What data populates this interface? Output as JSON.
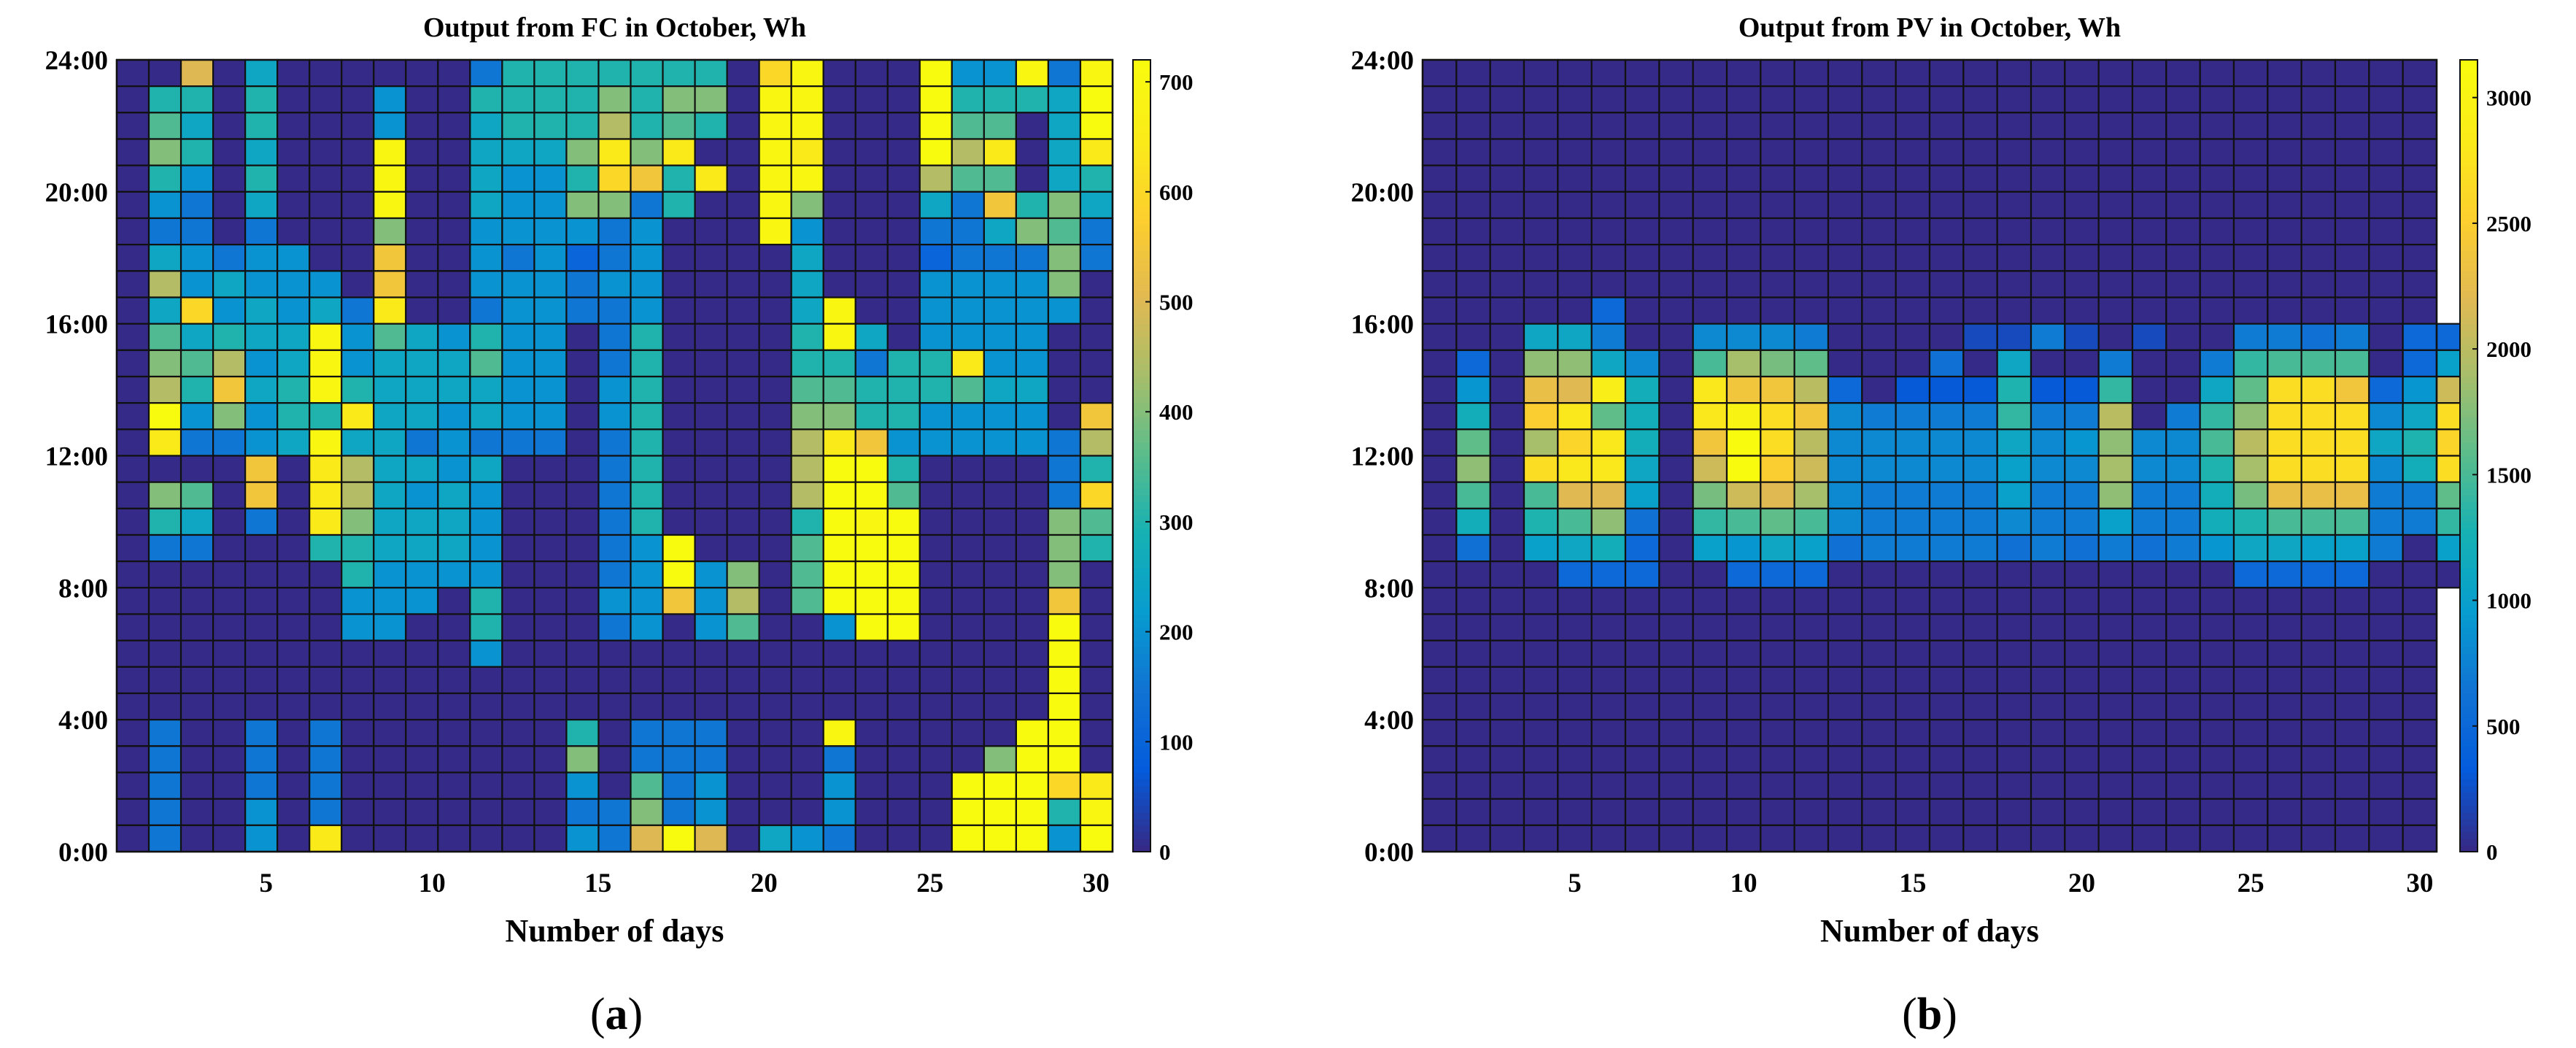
{
  "chart_data": [
    {
      "type": "heatmap",
      "title": "Output from FC in October, Wh",
      "xlabel": "Number of days",
      "ylabel": "",
      "caption": "(a)",
      "caption_letter": "a",
      "x_ticks": [
        "5",
        "10",
        "15",
        "20",
        "25",
        "30"
      ],
      "y_ticks": [
        "0:00",
        "4:00",
        "8:00",
        "12:00",
        "16:00",
        "20:00",
        "24:00"
      ],
      "x_range": [
        1,
        30
      ],
      "y_range": [
        0,
        24
      ],
      "colorbar_ticks": [
        "0",
        "100",
        "200",
        "300",
        "400",
        "500",
        "600",
        "700"
      ],
      "colorbar_range": [
        0,
        720
      ],
      "colormap": "parula",
      "grid": true,
      "rows_from_top": [
        "0 0 500 0 250 0 0 0 0 0 0 150 300 300 300 300 300 300 300 0 600 700 0 0 0 720 200 200 700 150 700",
        "0 300 300 0 300 0 0 0 200 0 0 300 300 300 300 400 300 400 400 0 700 700 0 0 0 720 300 300 300 250 720",
        "0 350 250 0 300 0 0 0 200 0 0 250 300 300 300 450 300 350 300 0 700 700 0 0 0 720 350 350 0 250 720",
        "0 400 300 0 250 0 0 0 700 0 0 250 250 250 400 650 400 650 0 0 700 650 0 0 0 720 450 650 0 250 650",
        "0 300 200 0 300 0 0 0 700 0 0 250 200 200 300 600 550 300 650 0 700 700 0 0 0 450 350 350 0 250 300",
        "0 200 150 0 250 0 0 0 700 0 0 250 200 200 400 400 150 300 0 0 700 400 0 0 0 250 150 550 300 400 250",
        "0 150 150 0 150 0 0 0 400 0 0 200 200 200 200 150 200 0 0 0 700 200 0 0 0 150 150 250 400 350 150",
        "0 250 200 150 200 200 0 0 550 0 0 200 150 200 100 150 200 0 0 0 0 250 0 0 0 100 150 150 150 400 150",
        "0 450 200 250 200 200 200 0 550 0 0 200 200 200 150 200 200 0 0 0 0 250 0 0 0 200 200 200 200 400 0",
        "0 250 600 200 250 200 250 150 650 0 0 150 200 200 150 150 200 0 0 0 0 250 700 0 0 200 200 200 200 200 0",
        "0 350 250 300 250 250 700 200 350 250 200 300 200 200 0 150 300 0 0 0 0 300 700 250 0 200 200 200 200 0 0",
        "0 400 350 450 200 250 700 200 250 250 250 350 200 200 0 150 300 0 0 0 0 300 300 150 300 300 650 200 200 0 0",
        "0 450 300 550 250 300 700 300 250 250 250 250 200 200 0 200 300 0 0 0 0 350 350 300 300 300 350 250 250 0 0",
        "0 720 200 400 200 300 300 650 250 250 200 250 200 200 0 200 300 0 0 0 0 400 400 300 300 200 200 200 200 0 550",
        "0 650 150 150 200 250 700 250 250 150 200 150 150 150 0 150 300 0 0 0 0 450 650 550 200 200 200 200 200 150 450",
        "0 0 0 0 550 0 650 450 250 250 200 250 0 0 0 150 300 0 0 0 0 450 720 720 300 0 0 0 0 150 300",
        "0 400 350 0 550 0 650 450 250 200 250 200 0 0 0 150 300 0 0 0 0 450 720 720 350 0 0 0 0 150 600",
        "0 300 250 0 150 0 650 400 250 250 250 200 0 0 0 150 300 0 0 0 0 300 720 700 720 0 0 0 0 400 350",
        "0 150 150 0 0 0 300 300 250 250 250 200 0 0 0 150 200 720 0 0 0 350 720 720 720 0 0 0 0 400 300",
        "0 0 0 0 0 0 0 300 200 200 200 200 0 0 0 150 200 720 200 400 0 350 720 720 720 0 0 0 0 400 0",
        "0 0 0 0 0 0 0 200 200 200 0 300 0 0 0 200 200 550 200 450 0 350 720 720 720 0 0 0 0 550 0",
        "0 0 0 0 0 0 0 200 200 0 0 300 0 0 0 150 200 0 200 350 0 0 200 720 720 0 0 0 0 720 0",
        "0 0 0 0 0 0 0 0 0 0 0 200 0 0 0 0 0 0 0 0 0 0 0 0 0 0 0 0 0 720 0",
        "0 0 0 0 0 0 0 0 0 0 0 0 0 0 0 0 0 0 0 0 0 0 0 0 0 0 0 0 0 720 0",
        "0 0 0 0 0 0 0 0 0 0 0 0 0 0 0 0 0 0 0 0 0 0 0 0 0 0 0 0 0 720 0",
        "0 150 0 0 150 0 150 0 0 0 0 0 0 0 300 0 150 150 150 0 0 0 700 0 0 0 0 0 720 720 0",
        "0 150 0 0 150 0 150 0 0 0 0 0 0 0 400 0 150 150 150 0 0 0 150 0 0 0 0 400 720 720 0",
        "0 150 0 0 150 0 150 0 0 0 0 0 0 0 200 0 350 150 200 0 0 0 200 0 0 0 720 720 720 600 650",
        "0 150 0 0 200 0 150 0 0 0 0 0 0 0 150 150 400 150 200 0 0 0 200 0 0 0 720 720 720 300 700",
        "0 150 0 0 200 0 650 0 0 0 0 0 0 0 200 150 500 720 500 0 250 200 150 0 0 0 720 720 720 200 720"
      ]
    },
    {
      "type": "heatmap",
      "title": "Output from PV in October, Wh",
      "xlabel": "Number of days",
      "ylabel": "",
      "caption": "(b)",
      "caption_letter": "b",
      "x_ticks": [
        "5",
        "10",
        "15",
        "20",
        "25",
        "30"
      ],
      "y_ticks": [
        "0:00",
        "4:00",
        "8:00",
        "12:00",
        "16:00",
        "20:00",
        "24:00"
      ],
      "x_range": [
        1,
        30
      ],
      "y_range": [
        0,
        24
      ],
      "colorbar_ticks": [
        "0",
        "500",
        "1000",
        "1500",
        "2000",
        "2500",
        "3000"
      ],
      "colorbar_range": [
        0,
        3150
      ],
      "colormap": "parula",
      "grid": true,
      "rows_from_top": [
        "0 0 0 0 0 0 0 0 0 0 0 0 0 0 0 0 0 0 0 0 0 0 0 0 0 0 0 0 0 0",
        "0 0 0 0 0 0 0 0 0 0 0 0 0 0 0 0 0 0 0 0 0 0 0 0 0 0 0 0 0 0",
        "0 0 0 0 0 0 0 0 0 0 0 0 0 0 0 0 0 0 0 0 0 0 0 0 0 0 0 0 0 0",
        "0 0 0 0 0 0 0 0 0 0 0 0 0 0 0 0 0 0 0 0 0 0 0 0 0 0 0 0 0 0",
        "0 0 0 0 0 0 0 0 0 0 0 0 0 0 0 0 0 0 0 0 0 0 0 0 0 0 0 0 0 0",
        "0 0 0 0 0 0 0 0 0 0 0 0 0 0 0 0 0 0 0 0 0 0 0 0 0 0 0 0 0 0",
        "0 0 0 0 0 0 0 0 0 0 0 0 0 0 0 0 0 0 0 0 0 0 0 0 0 0 0 0 0 0",
        "0 0 0 0 0 0 0 0 0 0 0 0 0 0 0 0 0 0 0 0 0 0 0 0 0 0 0 0 0 0",
        "0 0 0 0 0 0 0 0 0 0 0 0 0 0 0 0 0 0 0 0 0 0 0 0 0 0 0 0 0 0",
        "0 0 0 0 0 500 0 0 0 0 0 0 0 0 0 0 0 0 0 0 0 0 0 0 0 0 0 0 0 0",
        "0 0 0 1100 1100 700 0 0 800 800 800 700 0 0 0 0 200 200 700 200 0 200 0 0 700 700 600 700 0 500 500",
        "0 500 0 1800 1800 1100 800 0 1500 1900 1700 1600 0 0 0 600 0 1100 0 0 700 0 0 700 1400 1500 1500 1500 0 500 1000",
        "0 900 0 2300 2200 2900 1200 0 2800 2400 2400 2000 500 0 300 300 300 1300 300 300 1400 0 0 1100 1600 2700 2700 2400 500 900 2100",
        "0 1200 0 2500 2800 1600 1200 0 2800 3000 2700 2400 800 700 700 700 700 1400 700 700 2000 0 700 1400 1800 2700 2700 2700 800 1100 2700",
        "0 1600 0 1900 2600 2800 1200 0 2400 3150 2700 2000 800 800 800 800 800 1100 800 900 1800 800 800 1500 2000 2700 2700 2700 1100 1300 2600",
        "0 1800 0 2700 2800 2800 1100 0 2100 3150 2500 2100 800 800 800 800 800 1000 800 800 1900 800 800 1300 1900 2700 2700 2700 800 1200 2700",
        "0 1500 0 1500 2200 2200 1000 0 1700 2100 2200 1900 800 700 700 700 700 1000 700 700 1800 700 700 1200 1700 2300 2300 2300 700 700 1600",
        "0 1200 0 1300 1500 1800 600 0 1400 1500 1600 1500 800 700 700 700 700 800 700 700 1000 700 700 1200 1300 1500 1500 1500 700 700 1400",
        "0 600 0 1000 1100 1200 500 0 1000 900 1100 1000 600 700 700 700 700 600 700 600 700 600 700 900 1100 1100 1000 1000 700 0 1000",
        "0 0 0 0 500 500 500 0 0 500 500 500 0 0 0 0 0 0 0 0 0 0 0 0 500 500 500 500 0 0 0",
        "0 0 0 0 0 0 0 0 0 0 0 0 0 0 0 0 0 0 0 0 0 0 0 0 0 0 0 0 0 0",
        "0 0 0 0 0 0 0 0 0 0 0 0 0 0 0 0 0 0 0 0 0 0 0 0 0 0 0 0 0 0",
        "0 0 0 0 0 0 0 0 0 0 0 0 0 0 0 0 0 0 0 0 0 0 0 0 0 0 0 0 0 0",
        "0 0 0 0 0 0 0 0 0 0 0 0 0 0 0 0 0 0 0 0 0 0 0 0 0 0 0 0 0 0",
        "0 0 0 0 0 0 0 0 0 0 0 0 0 0 0 0 0 0 0 0 0 0 0 0 0 0 0 0 0 0",
        "0 0 0 0 0 0 0 0 0 0 0 0 0 0 0 0 0 0 0 0 0 0 0 0 0 0 0 0 0 0",
        "0 0 0 0 0 0 0 0 0 0 0 0 0 0 0 0 0 0 0 0 0 0 0 0 0 0 0 0 0 0",
        "0 0 0 0 0 0 0 0 0 0 0 0 0 0 0 0 0 0 0 0 0 0 0 0 0 0 0 0 0 0",
        "0 0 0 0 0 0 0 0 0 0 0 0 0 0 0 0 0 0 0 0 0 0 0 0 0 0 0 0 0 0",
        "0 0 0 0 0 0 0 0 0 0 0 0 0 0 0 0 0 0 0 0 0 0 0 0 0 0 0 0 0 0"
      ]
    }
  ]
}
